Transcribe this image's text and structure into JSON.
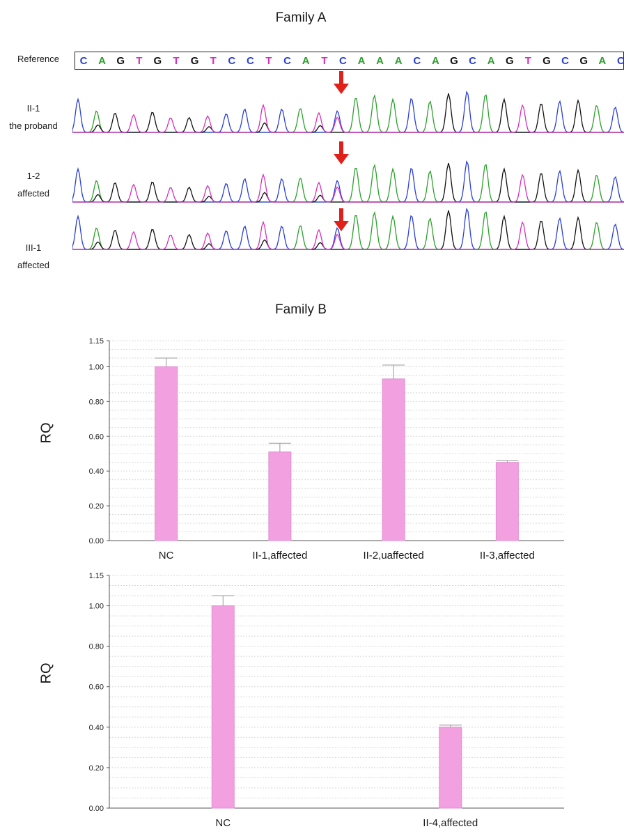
{
  "family_a": {
    "title": "Family A",
    "reference_label": "Reference",
    "reference_sequence": [
      "C",
      "A",
      "G",
      "T",
      "G",
      "T",
      "G",
      "T",
      "C",
      "C",
      "T",
      "C",
      "A",
      "T",
      "C",
      "A",
      "A",
      "A",
      "C",
      "A",
      "G",
      "C",
      "A",
      "G",
      "T",
      "G",
      "C",
      "G",
      "A",
      "C"
    ],
    "base_colors": {
      "A": "#2ca02c",
      "C": "#2a3fd6",
      "G": "#111111",
      "T": "#d62fbf"
    },
    "arrow_color": "#e0201a",
    "samples": [
      {
        "line1": "II-1",
        "line2": "the proband"
      },
      {
        "line1": "1-2",
        "line2": "affected"
      },
      {
        "line1": "III-1",
        "line2": "affected"
      }
    ]
  },
  "family_b": {
    "title": "Family B"
  },
  "chart_data": [
    {
      "type": "bar",
      "ylabel": "RQ",
      "xlabel": "",
      "ylim": [
        0,
        1.15
      ],
      "yticks": [
        "0.00",
        "0.20",
        "0.40",
        "0.60",
        "0.80",
        "1.00",
        "1.15"
      ],
      "ytick_values": [
        0,
        0.2,
        0.4,
        0.6,
        0.8,
        1.0,
        1.15
      ],
      "categories": [
        "NC",
        "II-1,affected",
        "II-2,uaffected",
        "II-3,affected"
      ],
      "values": [
        1.0,
        0.51,
        0.93,
        0.45
      ],
      "error_upper": [
        0.05,
        0.05,
        0.08,
        0.01
      ],
      "bar_color": "#f2a0df",
      "grid": true
    },
    {
      "type": "bar",
      "ylabel": "RQ",
      "xlabel": "",
      "ylim": [
        0,
        1.15
      ],
      "yticks": [
        "0.00",
        "0.20",
        "0.40",
        "0.60",
        "0.80",
        "1.00",
        "1.15"
      ],
      "ytick_values": [
        0,
        0.2,
        0.4,
        0.6,
        0.8,
        1.0,
        1.15
      ],
      "categories": [
        "NC",
        "II-4,affected"
      ],
      "values": [
        1.0,
        0.4
      ],
      "error_upper": [
        0.05,
        0.01
      ],
      "bar_color": "#f2a0df",
      "grid": true
    }
  ]
}
